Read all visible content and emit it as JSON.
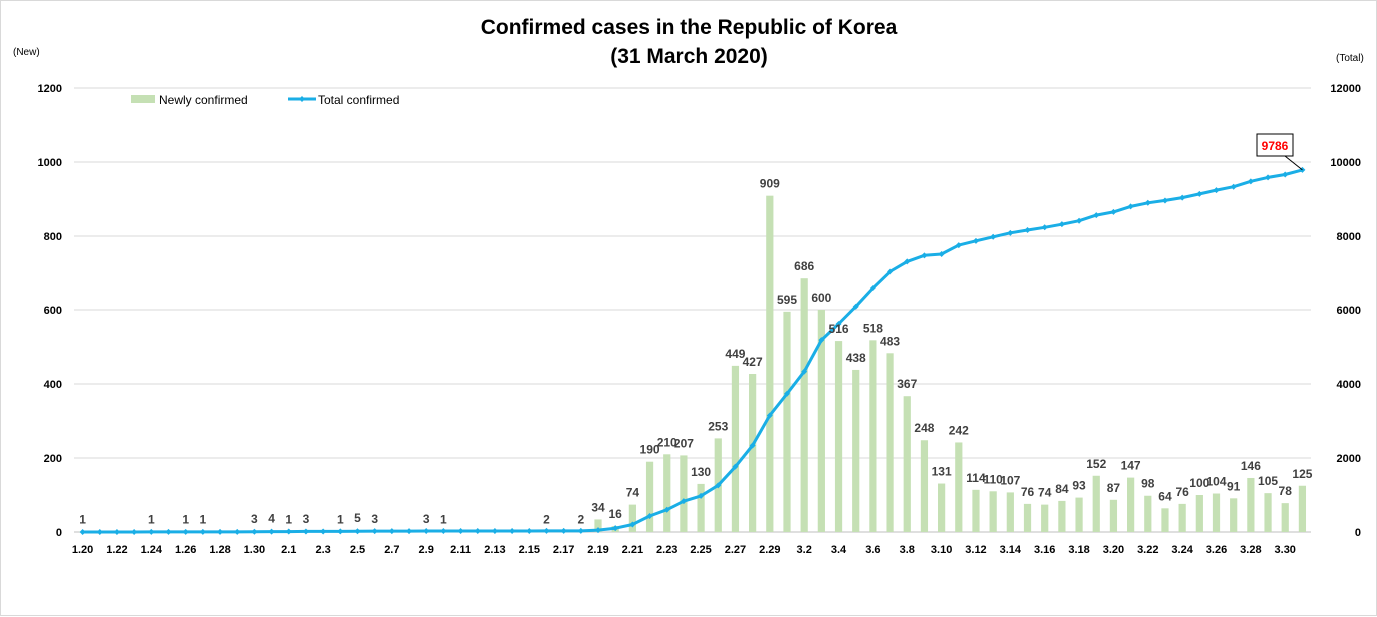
{
  "chart_data": {
    "type": "bar",
    "title": [
      "Confirmed cases in the Republic of Korea",
      "(31 March 2020)"
    ],
    "left_unit": "(New)",
    "right_unit": "(Total)",
    "y_left": {
      "min": 0,
      "max": 1200,
      "ticks": [
        "0",
        "200",
        "400",
        "600",
        "800",
        "1000",
        "1200"
      ]
    },
    "y_right": {
      "min": 0,
      "max": 12000,
      "ticks": [
        "0",
        "2000",
        "4000",
        "6000",
        "8000",
        "10000",
        "12000"
      ]
    },
    "grid": true,
    "legend_position": "top-left",
    "highlight_color": "#ff0000",
    "categories": [
      "1.20",
      "1.21",
      "1.22",
      "1.23",
      "1.24",
      "1.25",
      "1.26",
      "1.27",
      "1.28",
      "1.29",
      "1.30",
      "1.31",
      "2.1",
      "2.2",
      "2.3",
      "2.4",
      "2.5",
      "2.6",
      "2.7",
      "2.8",
      "2.9",
      "2.10",
      "2.11",
      "2.12",
      "2.13",
      "2.14",
      "2.15",
      "2.16",
      "2.17",
      "2.18",
      "2.19",
      "2.20",
      "2.21",
      "2.22",
      "2.23",
      "2.24",
      "2.25",
      "2.26",
      "2.27",
      "2.28",
      "2.29",
      "3.1",
      "3.2",
      "3.3",
      "3.4",
      "3.5",
      "3.6",
      "3.7",
      "3.8",
      "3.9",
      "3.10",
      "3.11",
      "3.12",
      "3.13",
      "3.14",
      "3.15",
      "3.16",
      "3.17",
      "3.18",
      "3.19",
      "3.20",
      "3.21",
      "3.22",
      "3.23",
      "3.24",
      "3.25",
      "3.26",
      "3.27",
      "3.28",
      "3.29",
      "3.30",
      "3.31"
    ],
    "x_tick_labels": [
      "1.20",
      "1.22",
      "1.24",
      "1.26",
      "1.28",
      "1.30",
      "2.1",
      "2.3",
      "2.5",
      "2.7",
      "2.9",
      "2.11",
      "2.13",
      "2.15",
      "2.17",
      "2.19",
      "2.21",
      "2.23",
      "2.25",
      "2.27",
      "2.29",
      "3.2",
      "3.4",
      "3.6",
      "3.8",
      "3.10",
      "3.12",
      "3.14",
      "3.16",
      "3.18",
      "3.20",
      "3.22",
      "3.24",
      "3.26",
      "3.28",
      "3.30"
    ],
    "series": [
      {
        "name": "Newly confirmed",
        "kind": "bar",
        "axis": "left",
        "color": "#c5e0b4",
        "values": [
          1,
          0,
          0,
          0,
          1,
          0,
          1,
          1,
          0,
          0,
          3,
          4,
          1,
          3,
          0,
          1,
          5,
          3,
          0,
          0,
          3,
          1,
          0,
          0,
          0,
          0,
          0,
          2,
          0,
          2,
          34,
          16,
          74,
          190,
          210,
          207,
          130,
          253,
          449,
          427,
          909,
          595,
          686,
          600,
          516,
          438,
          518,
          483,
          367,
          248,
          131,
          242,
          114,
          110,
          107,
          76,
          74,
          84,
          93,
          152,
          87,
          147,
          98,
          64,
          76,
          100,
          104,
          91,
          146,
          105,
          78,
          125
        ],
        "labels": [
          "1",
          "",
          "",
          "",
          "1",
          "",
          "1",
          "1",
          "",
          "",
          "3",
          "4",
          "1",
          "3",
          "",
          "1",
          "5",
          "3",
          "",
          "",
          "3",
          "1",
          "",
          "",
          "",
          "",
          "",
          "2",
          "",
          "2",
          "34",
          "16",
          "74",
          "190",
          "210",
          "207",
          "130",
          "253",
          "449",
          "427",
          "909",
          "595",
          "686",
          "600",
          "516",
          "438",
          "518",
          "483",
          "367",
          "248",
          "131",
          "242",
          "114",
          "110",
          "107",
          "76",
          "74",
          "84",
          "93",
          "152",
          "87",
          "147",
          "98",
          "64",
          "76",
          "100",
          "104",
          "91",
          "146",
          "105",
          "78",
          "125"
        ]
      },
      {
        "name": "Total confirmed",
        "kind": "line",
        "axis": "right",
        "color": "#1aaee6",
        "values": [
          1,
          1,
          1,
          1,
          2,
          2,
          3,
          4,
          4,
          4,
          7,
          11,
          12,
          15,
          15,
          16,
          21,
          24,
          24,
          24,
          27,
          28,
          28,
          28,
          28,
          28,
          28,
          30,
          30,
          31,
          51,
          104,
          204,
          433,
          602,
          833,
          977,
          1261,
          1766,
          2337,
          3150,
          3736,
          4335,
          5186,
          5621,
          6088,
          6593,
          7041,
          7313,
          7478,
          7513,
          7755,
          7869,
          7979,
          8086,
          8162,
          8236,
          8320,
          8413,
          8565,
          8652,
          8799,
          8897,
          8961,
          9037,
          9137,
          9241,
          9332,
          9478,
          9583,
          9661,
          9786
        ],
        "end_label": "9786"
      }
    ]
  }
}
